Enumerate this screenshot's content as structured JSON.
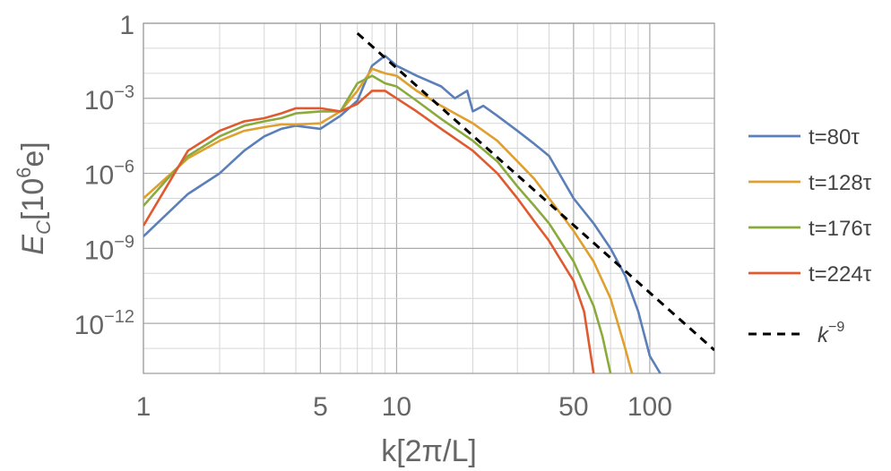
{
  "chart_data": {
    "type": "line",
    "scale": {
      "x": "log",
      "y": "log"
    },
    "xlabel": "k[2π/L]",
    "ylabel": "E_C[10^6 e]",
    "ylabel_main": "E",
    "ylabel_sub": "C",
    "ylabel_unit_prefix": "[10",
    "ylabel_unit_exp": "6",
    "ylabel_unit_suffix": "e]",
    "xlim": [
      1,
      180
    ],
    "ylim": [
      1e-14,
      1
    ],
    "x_ticks": [
      {
        "value": 1,
        "label": "1"
      },
      {
        "value": 5,
        "label": "5"
      },
      {
        "value": 10,
        "label": "10"
      },
      {
        "value": 50,
        "label": "50"
      },
      {
        "value": 100,
        "label": "100"
      }
    ],
    "y_ticks": [
      {
        "value": 1,
        "base": "1",
        "exp": ""
      },
      {
        "value": 0.001,
        "base": "10",
        "exp": "−3"
      },
      {
        "value": 1e-06,
        "base": "10",
        "exp": "−6"
      },
      {
        "value": 1e-09,
        "base": "10",
        "exp": "−9"
      },
      {
        "value": 1e-12,
        "base": "10",
        "exp": "−12"
      }
    ],
    "grid": true,
    "legend_position": "right",
    "series": [
      {
        "name": "t=80τ",
        "color": "#5b7fb8",
        "x": [
          1,
          1.5,
          2,
          2.5,
          3,
          3.5,
          4,
          5,
          6,
          7,
          8,
          9,
          10,
          12,
          15,
          17,
          19,
          20,
          22,
          25,
          30,
          35,
          40,
          50,
          60,
          70,
          80,
          90,
          100,
          110
        ],
        "y": [
          3e-09,
          1.5e-07,
          1e-06,
          8e-06,
          3e-05,
          6e-05,
          8e-05,
          6e-05,
          0.0002,
          0.0008,
          0.02,
          0.05,
          0.02,
          0.008,
          0.003,
          0.001,
          0.002,
          0.0003,
          0.0005,
          0.0002,
          5e-05,
          1.5e-05,
          5e-06,
          1e-07,
          1e-08,
          1e-09,
          8e-11,
          3e-12,
          5e-14,
          1e-14
        ]
      },
      {
        "name": "t=128τ",
        "color": "#e0a030",
        "x": [
          1,
          1.5,
          2,
          2.5,
          3,
          3.5,
          4,
          5,
          6,
          7,
          8,
          9,
          10,
          12,
          15,
          20,
          25,
          30,
          35,
          40,
          50,
          60,
          70,
          80,
          85
        ],
        "y": [
          1e-07,
          4e-06,
          2e-05,
          5e-05,
          7e-05,
          9e-05,
          9e-05,
          0.0001,
          0.0003,
          0.002,
          0.015,
          0.01,
          0.008,
          0.002,
          0.0005,
          0.0001,
          2e-05,
          3e-06,
          6e-07,
          1e-07,
          5e-09,
          3e-10,
          1e-11,
          1e-13,
          1e-14
        ]
      },
      {
        "name": "t=176τ",
        "color": "#8aab3c",
        "x": [
          1,
          1.5,
          2,
          2.5,
          3,
          3.5,
          4,
          5,
          6,
          7,
          8,
          9,
          10,
          12,
          15,
          20,
          25,
          30,
          35,
          40,
          50,
          60,
          65,
          70
        ],
        "y": [
          5e-08,
          5e-06,
          3e-05,
          8e-05,
          0.00012,
          0.00016,
          0.00025,
          0.0003,
          0.0003,
          0.004,
          0.008,
          0.004,
          0.003,
          0.0008,
          0.00015,
          2e-05,
          3e-06,
          3e-07,
          5e-08,
          1e-08,
          3e-10,
          5e-12,
          3e-13,
          1e-14
        ]
      },
      {
        "name": "t=224τ",
        "color": "#e05a30",
        "x": [
          1,
          1.5,
          2,
          2.5,
          3,
          3.5,
          4,
          5,
          6,
          7,
          8,
          9,
          10,
          12,
          15,
          20,
          25,
          30,
          35,
          40,
          50,
          55,
          60
        ],
        "y": [
          8e-09,
          8e-06,
          5e-05,
          0.00012,
          0.00016,
          0.00025,
          0.0004,
          0.0004,
          0.0003,
          0.0006,
          0.002,
          0.002,
          0.001,
          0.0003,
          6e-05,
          8e-06,
          1e-06,
          1e-07,
          1.2e-08,
          2e-09,
          5e-11,
          3e-12,
          1e-14
        ]
      },
      {
        "name": "k^-9",
        "color": "#000000",
        "dashed": true,
        "x": [
          7,
          180
        ],
        "y": [
          0.4,
          8.5e-14
        ]
      }
    ],
    "legend": [
      {
        "label": "t=80τ",
        "color": "#5b7fb8"
      },
      {
        "label": "t=128τ",
        "color": "#e0a030"
      },
      {
        "label": "t=176τ",
        "color": "#8aab3c"
      },
      {
        "label": "t=224τ",
        "color": "#e05a30"
      },
      {
        "label_base": "k",
        "label_exp": "−9",
        "color": "#000000",
        "dashed": true
      }
    ]
  }
}
